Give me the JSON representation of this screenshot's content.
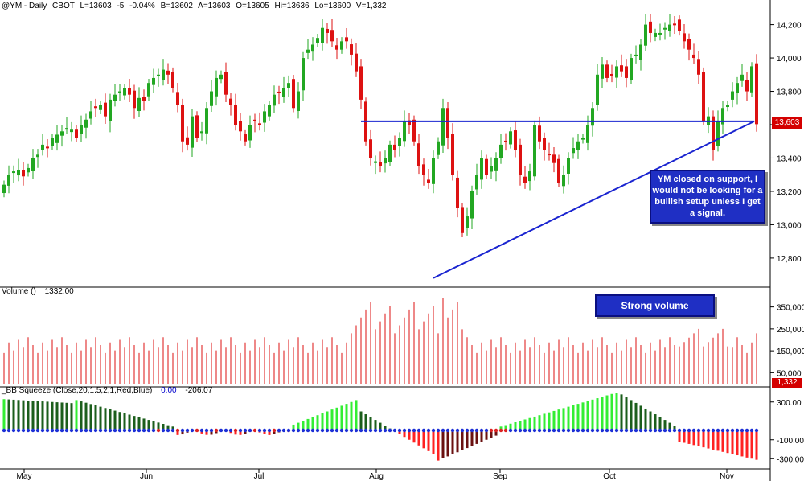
{
  "header": {
    "symbol": "@YM - Daily",
    "exchange": "CBOT",
    "last": "L=13603",
    "change": "-5",
    "change_pct": "-0.04%",
    "bid": "B=13602",
    "ask": "A=13603",
    "open": "O=13605",
    "high": "Hi=13636",
    "low": "Lo=13600",
    "volume": "V=1,332"
  },
  "price_label": "13,603",
  "volume_label": "1,332",
  "volume_header": {
    "name": "Volume ()",
    "value": "1332.00"
  },
  "squeeze_header": {
    "name": "_BB Squeeze (Close,20,1.5,2,1,Red,Blue)",
    "value1": "0.00",
    "value2": "-206.07"
  },
  "annotations": {
    "note1": "YM closed on support, I would not be looking for a bullish setup unless I get a signal.",
    "note2": "Strong volume"
  },
  "colors": {
    "up": "#22a722",
    "down": "#dd1111",
    "line": "#1a24d0",
    "sq_up_light": "#33ee33",
    "sq_up_dark": "#1b5e1b",
    "sq_down_light": "#ff2222",
    "sq_down_dark": "#6a1010",
    "dot_blue": "#1c2fd6",
    "dot_red": "#dd2222"
  },
  "chart_data": [
    {
      "type": "candlestick",
      "title": "@YM - Daily",
      "x_labels": [
        "May",
        "Jun",
        "Jul",
        "Aug",
        "Sep",
        "Oct",
        "Nov"
      ],
      "y_ticks": [
        "14,200",
        "14,000",
        "13,800",
        "13,600",
        "13,400",
        "13,200",
        "13,000",
        "12,800"
      ],
      "ylim": [
        12650,
        14280
      ],
      "close": [
        13240,
        13300,
        13320,
        13330,
        13290,
        13340,
        13400,
        13420,
        13480,
        13460,
        13520,
        13540,
        13560,
        13580,
        13570,
        13520,
        13600,
        13630,
        13680,
        13700,
        13720,
        13650,
        13750,
        13780,
        13800,
        13820,
        13780,
        13700,
        13760,
        13740,
        13850,
        13880,
        13900,
        13930,
        13900,
        13820,
        13720,
        13500,
        13480,
        13650,
        13520,
        13560,
        13700,
        13800,
        13880,
        13900,
        13780,
        13720,
        13600,
        13560,
        13500,
        13600,
        13620,
        13600,
        13680,
        13720,
        13780,
        13790,
        13820,
        13850,
        13700,
        13800,
        14000,
        14050,
        14080,
        14120,
        14180,
        14150,
        14100,
        14050,
        14100,
        14100,
        14020,
        13920,
        13750,
        13500,
        13400,
        13380,
        13350,
        13400,
        13480,
        13450,
        13520,
        13620,
        13600,
        13500,
        13350,
        13300,
        13250,
        13400,
        13500,
        13700,
        13520,
        13300,
        13100,
        12950,
        13050,
        13200,
        13300,
        13400,
        13300,
        13350,
        13400,
        13480,
        13500,
        13560,
        13450,
        13300,
        13250,
        13320,
        13600,
        13500,
        13450,
        13420,
        13370,
        13250,
        13300,
        13400,
        13460,
        13500,
        13520,
        13600,
        13700,
        13900,
        13960,
        13880,
        13900,
        13950,
        13920,
        13880,
        14000,
        14020,
        14080,
        14200,
        14150,
        14150,
        14150,
        14180,
        14200,
        14200,
        14160,
        14100,
        14050,
        14000,
        13900,
        13620,
        13650,
        13450,
        13620,
        13700,
        13720,
        13800,
        13850,
        13900,
        13800,
        13950,
        13603
      ],
      "price_levels": [
        {
          "name": "support line",
          "value": 13620
        }
      ],
      "trendline": {
        "from": {
          "index": 89,
          "value": 12680
        },
        "to": {
          "index": 152,
          "value": 13620
        }
      }
    },
    {
      "type": "bar",
      "title": "Volume ()",
      "y_ticks": [
        "350,000",
        "250,000",
        "150,000",
        "50,000"
      ],
      "ylim": [
        0,
        400000
      ]
    },
    {
      "type": "bar",
      "title": "_BB Squeeze (Close,20,1.5,2,1,Red,Blue)",
      "y_ticks": [
        "300.00",
        "-100.00",
        "-300.00"
      ],
      "ylim": [
        -400,
        400
      ]
    }
  ]
}
